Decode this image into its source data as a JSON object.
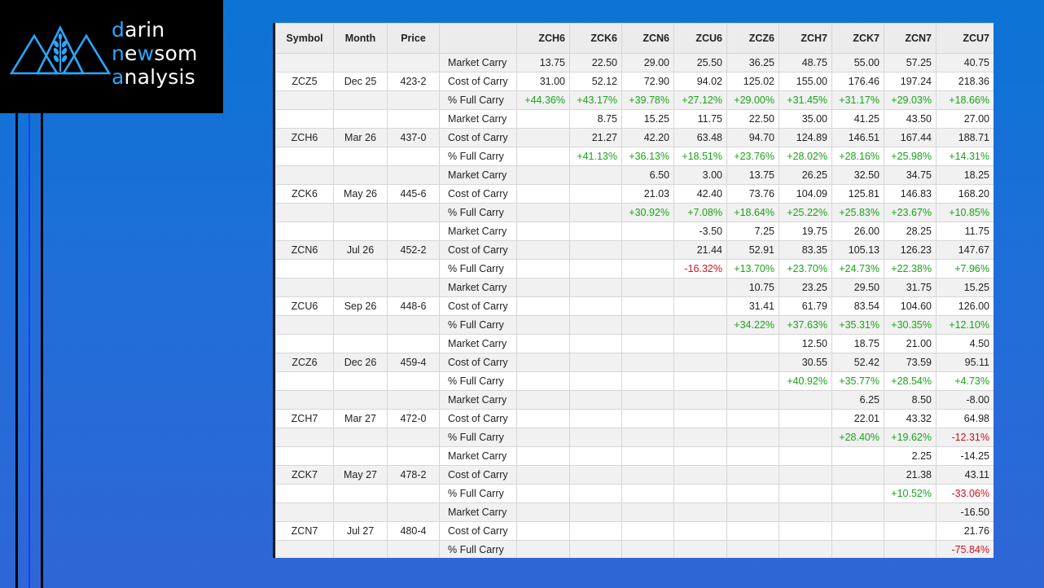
{
  "brand": {
    "name_lines": [
      {
        "first": "d",
        "rest": "arin"
      },
      {
        "first": "n",
        "rest": "e",
        "accent2": "w",
        "rest2": "som"
      },
      {
        "first": "a",
        "rest": "nalysis"
      }
    ],
    "accent_color": "#2aa7ff"
  },
  "table": {
    "headers": [
      "Symbol",
      "Month",
      "Price",
      "",
      "ZCH6",
      "ZCK6",
      "ZCN6",
      "ZCU6",
      "ZCZ6",
      "ZCH7",
      "ZCK7",
      "ZCN7",
      "ZCU7"
    ],
    "rows": [
      {
        "symbol": "",
        "month": "",
        "price": "",
        "label": "Market Carry",
        "values": [
          "13.75",
          "22.50",
          "29.00",
          "25.50",
          "36.25",
          "48.75",
          "55.00",
          "57.25",
          "40.75"
        ]
      },
      {
        "symbol": "ZCZ5",
        "month": "Dec 25",
        "price": "423-2",
        "label": "Cost of Carry",
        "values": [
          "31.00",
          "52.12",
          "72.90",
          "94.02",
          "125.02",
          "155.00",
          "176.46",
          "197.24",
          "218.36"
        ]
      },
      {
        "symbol": "",
        "month": "",
        "price": "",
        "label": "% Full Carry",
        "values": [
          "+44.36%",
          "+43.17%",
          "+39.78%",
          "+27.12%",
          "+29.00%",
          "+31.45%",
          "+31.17%",
          "+29.03%",
          "+18.66%"
        ]
      },
      {
        "symbol": "",
        "month": "",
        "price": "",
        "label": "Market Carry",
        "values": [
          "",
          "8.75",
          "15.25",
          "11.75",
          "22.50",
          "35.00",
          "41.25",
          "43.50",
          "27.00"
        ]
      },
      {
        "symbol": "ZCH6",
        "month": "Mar 26",
        "price": "437-0",
        "label": "Cost of Carry",
        "values": [
          "",
          "21.27",
          "42.20",
          "63.48",
          "94.70",
          "124.89",
          "146.51",
          "167.44",
          "188.71"
        ]
      },
      {
        "symbol": "",
        "month": "",
        "price": "",
        "label": "% Full Carry",
        "values": [
          "",
          "+41.13%",
          "+36.13%",
          "+18.51%",
          "+23.76%",
          "+28.02%",
          "+28.16%",
          "+25.98%",
          "+14.31%"
        ]
      },
      {
        "symbol": "",
        "month": "",
        "price": "",
        "label": "Market Carry",
        "values": [
          "",
          "",
          "6.50",
          "3.00",
          "13.75",
          "26.25",
          "32.50",
          "34.75",
          "18.25"
        ]
      },
      {
        "symbol": "ZCK6",
        "month": "May 26",
        "price": "445-6",
        "label": "Cost of Carry",
        "values": [
          "",
          "",
          "21.03",
          "42.40",
          "73.76",
          "104.09",
          "125.81",
          "146.83",
          "168.20"
        ]
      },
      {
        "symbol": "",
        "month": "",
        "price": "",
        "label": "% Full Carry",
        "values": [
          "",
          "",
          "+30.92%",
          "+7.08%",
          "+18.64%",
          "+25.22%",
          "+25.83%",
          "+23.67%",
          "+10.85%"
        ]
      },
      {
        "symbol": "",
        "month": "",
        "price": "",
        "label": "Market Carry",
        "values": [
          "",
          "",
          "",
          "-3.50",
          "7.25",
          "19.75",
          "26.00",
          "28.25",
          "11.75"
        ]
      },
      {
        "symbol": "ZCN6",
        "month": "Jul 26",
        "price": "452-2",
        "label": "Cost of Carry",
        "values": [
          "",
          "",
          "",
          "21.44",
          "52.91",
          "83.35",
          "105.13",
          "126.23",
          "147.67"
        ]
      },
      {
        "symbol": "",
        "month": "",
        "price": "",
        "label": "% Full Carry",
        "values": [
          "",
          "",
          "",
          "-16.32%",
          "+13.70%",
          "+23.70%",
          "+24.73%",
          "+22.38%",
          "+7.96%"
        ]
      },
      {
        "symbol": "",
        "month": "",
        "price": "",
        "label": "Market Carry",
        "values": [
          "",
          "",
          "",
          "",
          "10.75",
          "23.25",
          "29.50",
          "31.75",
          "15.25"
        ]
      },
      {
        "symbol": "ZCU6",
        "month": "Sep 26",
        "price": "448-6",
        "label": "Cost of Carry",
        "values": [
          "",
          "",
          "",
          "",
          "31.41",
          "61.79",
          "83.54",
          "104.60",
          "126.00"
        ]
      },
      {
        "symbol": "",
        "month": "",
        "price": "",
        "label": "% Full Carry",
        "values": [
          "",
          "",
          "",
          "",
          "+34.22%",
          "+37.63%",
          "+35.31%",
          "+30.35%",
          "+12.10%"
        ]
      },
      {
        "symbol": "",
        "month": "",
        "price": "",
        "label": "Market Carry",
        "values": [
          "",
          "",
          "",
          "",
          "",
          "12.50",
          "18.75",
          "21.00",
          "4.50"
        ]
      },
      {
        "symbol": "ZCZ6",
        "month": "Dec 26",
        "price": "459-4",
        "label": "Cost of Carry",
        "values": [
          "",
          "",
          "",
          "",
          "",
          "30.55",
          "52.42",
          "73.59",
          "95.11"
        ]
      },
      {
        "symbol": "",
        "month": "",
        "price": "",
        "label": "% Full Carry",
        "values": [
          "",
          "",
          "",
          "",
          "",
          "+40.92%",
          "+35.77%",
          "+28.54%",
          "+4.73%"
        ]
      },
      {
        "symbol": "",
        "month": "",
        "price": "",
        "label": "Market Carry",
        "values": [
          "",
          "",
          "",
          "",
          "",
          "",
          "6.25",
          "8.50",
          "-8.00"
        ]
      },
      {
        "symbol": "ZCH7",
        "month": "Mar 27",
        "price": "472-0",
        "label": "Cost of Carry",
        "values": [
          "",
          "",
          "",
          "",
          "",
          "",
          "22.01",
          "43.32",
          "64.98"
        ]
      },
      {
        "symbol": "",
        "month": "",
        "price": "",
        "label": "% Full Carry",
        "values": [
          "",
          "",
          "",
          "",
          "",
          "",
          "+28.40%",
          "+19.62%",
          "-12.31%"
        ]
      },
      {
        "symbol": "",
        "month": "",
        "price": "",
        "label": "Market Carry",
        "values": [
          "",
          "",
          "",
          "",
          "",
          "",
          "",
          "2.25",
          "-14.25"
        ]
      },
      {
        "symbol": "ZCK7",
        "month": "May 27",
        "price": "478-2",
        "label": "Cost of Carry",
        "values": [
          "",
          "",
          "",
          "",
          "",
          "",
          "",
          "21.38",
          "43.11"
        ]
      },
      {
        "symbol": "",
        "month": "",
        "price": "",
        "label": "% Full Carry",
        "values": [
          "",
          "",
          "",
          "",
          "",
          "",
          "",
          "+10.52%",
          "-33.06%"
        ]
      },
      {
        "symbol": "",
        "month": "",
        "price": "",
        "label": "Market Carry",
        "values": [
          "",
          "",
          "",
          "",
          "",
          "",
          "",
          "",
          "-16.50"
        ]
      },
      {
        "symbol": "ZCN7",
        "month": "Jul 27",
        "price": "480-4",
        "label": "Cost of Carry",
        "values": [
          "",
          "",
          "",
          "",
          "",
          "",
          "",
          "",
          "21.76"
        ]
      },
      {
        "symbol": "",
        "month": "",
        "price": "",
        "label": "% Full Carry",
        "values": [
          "",
          "",
          "",
          "",
          "",
          "",
          "",
          "",
          "-75.84%"
        ]
      }
    ]
  },
  "colors": {
    "positive": "#1aa31a",
    "negative": "#d0101e",
    "background_top": "#0b73d4",
    "background_bottom": "#2f66d6"
  }
}
